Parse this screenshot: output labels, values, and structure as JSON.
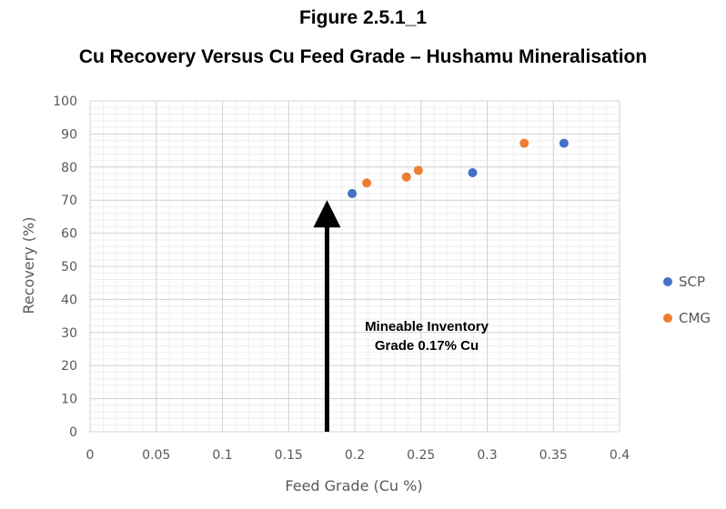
{
  "figure_label": "Figure 2.5.1_1",
  "chart_data": {
    "type": "scatter",
    "title": "Cu Recovery Versus Cu Feed Grade – Hushamu Mineralisation",
    "xlabel": "Feed Grade (Cu %)",
    "ylabel": "Recovery (%)",
    "xlim": [
      0,
      0.4
    ],
    "ylim": [
      0,
      100
    ],
    "x_ticks": [
      "0",
      "0.05",
      "0.1",
      "0.15",
      "0.2",
      "0.25",
      "0.3",
      "0.35",
      "0.4"
    ],
    "y_ticks": [
      "0",
      "10",
      "20",
      "30",
      "40",
      "50",
      "60",
      "70",
      "80",
      "90",
      "100"
    ],
    "grid": true,
    "legend_position": "right",
    "series": [
      {
        "name": "SCP",
        "color": "#4472C4",
        "points": [
          [
            0.198,
            72
          ],
          [
            0.289,
            78.3
          ],
          [
            0.358,
            87.2
          ]
        ]
      },
      {
        "name": "CMG",
        "color": "#ED7D31",
        "points": [
          [
            0.209,
            75.2
          ],
          [
            0.239,
            77
          ],
          [
            0.248,
            79
          ],
          [
            0.328,
            87.2
          ]
        ]
      }
    ],
    "annotation": {
      "lines": [
        "Mineable Inventory",
        "Grade 0.17% Cu"
      ],
      "arrow_x": 0.179,
      "arrow_from_y": 0,
      "arrow_to_y": 70
    }
  }
}
